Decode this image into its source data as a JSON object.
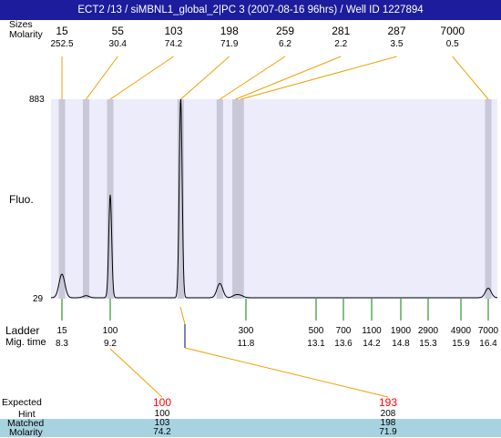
{
  "header": {
    "title": "ECT2 /13 / siMBNL1_global_2|PC 3 (2007-08-16 96hrs) / Well ID 1227894",
    "sizes_label": "Sizes",
    "molarity_label": "Molarity"
  },
  "axis": {
    "ymax_label": "883",
    "ymin_label": "29",
    "ylabel": "Fluo.",
    "ladder_label": "Ladder",
    "migtime_label": "Mig. time"
  },
  "expected": {
    "expected_label": "Expected",
    "hint_label": "Hint",
    "matched_label": "Matched",
    "molarity_label": "Molarity",
    "columns": [
      {
        "expected": "100",
        "hint": "100",
        "matched": "103",
        "molarity": "74.2"
      },
      {
        "expected": "193",
        "hint": "208",
        "matched": "198",
        "molarity": "71.9"
      }
    ]
  },
  "colors": {
    "title_bg": "#1c1c9c",
    "plot_bg": "#ececfb",
    "band": "#c8c8d8",
    "connector": "#f0a000",
    "ladder_tick": "#008000",
    "expected_text": "#ff0000",
    "matched_band": "#a7d3e0"
  },
  "chart_data": {
    "type": "line",
    "xlabel": "Mig. time",
    "ylabel": "Fluo.",
    "ylim": [
      29,
      883
    ],
    "peaks": [
      {
        "size": "15",
        "molarity": "252.5",
        "mig_time": 8.3,
        "height": 130
      },
      {
        "size": "55",
        "molarity": "30.4",
        "mig_time": 8.75,
        "height": 38
      },
      {
        "size": "103",
        "molarity": "74.2",
        "mig_time": 9.2,
        "height": 470
      },
      {
        "size": "198",
        "molarity": "71.9",
        "mig_time": 10.55,
        "height": 883
      },
      {
        "size": "259",
        "molarity": "6.2",
        "mig_time": 11.3,
        "height": 90
      },
      {
        "size": "281",
        "molarity": "2.2",
        "mig_time": 11.6,
        "height": 40
      },
      {
        "size": "287",
        "molarity": "3.5",
        "mig_time": 11.7,
        "height": 38
      },
      {
        "size": "7000",
        "molarity": "0.5",
        "mig_time": 16.4,
        "height": 70
      }
    ],
    "ladder": [
      {
        "size": "15",
        "mig_time": "8.3",
        "t": 8.3
      },
      {
        "size": "100",
        "mig_time": "9.2",
        "t": 9.2
      },
      {
        "size": "300",
        "mig_time": "11.8",
        "t": 11.8
      },
      {
        "size": "500",
        "mig_time": "13.1",
        "t": 13.1
      },
      {
        "size": "700",
        "mig_time": "13.6",
        "t": 13.6
      },
      {
        "size": "1100",
        "mig_time": "14.2",
        "t": 14.2
      },
      {
        "size": "1900",
        "mig_time": "14.8",
        "t": 14.8
      },
      {
        "size": "2900",
        "mig_time": "15.3",
        "t": 15.3
      },
      {
        "size": "4900",
        "mig_time": "15.9",
        "t": 15.9
      },
      {
        "size": "7000",
        "mig_time": "16.4",
        "t": 16.4
      }
    ]
  }
}
